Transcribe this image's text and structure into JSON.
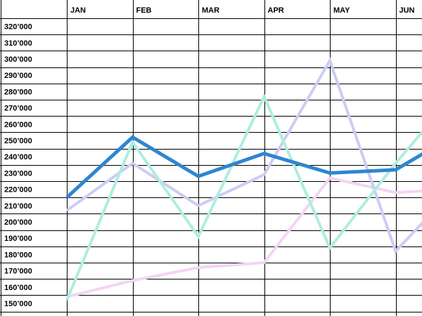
{
  "chart_data": {
    "type": "line",
    "categories": [
      "JAN",
      "FEB",
      "MAR",
      "APR",
      "MAY",
      "JUN"
    ],
    "y_tick_labels": [
      "320’000",
      "310’000",
      "300’000",
      "290’000",
      "280’000",
      "270’000",
      "260’000",
      "250’000",
      "240’000",
      "230’000",
      "220’000",
      "210’000",
      "200’000",
      "190’000",
      "180’000",
      "170’000",
      "160’000",
      "150’000"
    ],
    "y_ticks": [
      320000,
      310000,
      300000,
      290000,
      280000,
      270000,
      260000,
      250000,
      240000,
      230000,
      220000,
      210000,
      200000,
      190000,
      180000,
      170000,
      160000,
      150000
    ],
    "ylim": [
      146000,
      324000
    ],
    "grid": true,
    "title": "",
    "xlabel": "",
    "ylabel": "",
    "series": [
      {
        "color": "#2e86d0",
        "values": [
          215000,
          252000,
          228000,
          242000,
          230000,
          232000
        ],
        "trailing_value": 242000
      },
      {
        "color": "#aeeedd",
        "values": [
          152000,
          249000,
          191000,
          277000,
          184000,
          236000
        ],
        "trailing_value": 256000
      },
      {
        "color": "#ccccf4",
        "values": [
          207000,
          236000,
          210000,
          229000,
          299000,
          182000
        ],
        "trailing_value": 200000
      },
      {
        "color": "#f4d4f4",
        "values": [
          154000,
          164000,
          172000,
          175000,
          227000,
          218000
        ],
        "trailing_value": 219000
      }
    ]
  }
}
